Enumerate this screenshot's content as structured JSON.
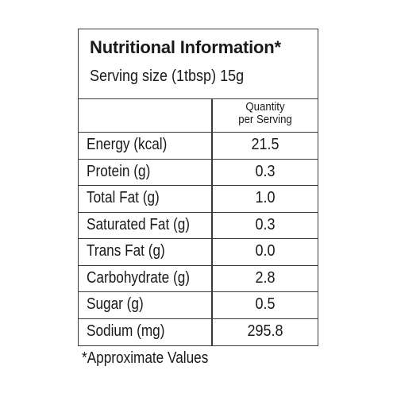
{
  "label": {
    "title": "Nutritional Information*",
    "serving_size": "Serving size (1tbsp) 15g",
    "column_header": "Quantity\nper Serving",
    "rows": [
      {
        "nutrient": "Energy (kcal)",
        "value": "21.5"
      },
      {
        "nutrient": "Protein (g)",
        "value": "0.3"
      },
      {
        "nutrient": "Total Fat (g)",
        "value": "1.0"
      },
      {
        "nutrient": "Saturated Fat (g)",
        "value": "0.3"
      },
      {
        "nutrient": "Trans Fat (g)",
        "value": "0.0"
      },
      {
        "nutrient": "Carbohydrate (g)",
        "value": "2.8"
      },
      {
        "nutrient": "Sugar (g)",
        "value": "0.5"
      },
      {
        "nutrient": "Sodium (mg)",
        "value": "295.8"
      }
    ],
    "footnote": "*Approximate Values"
  },
  "colors": {
    "text": "#1a1a1a",
    "border": "#3a3a3a",
    "background": "#ffffff"
  }
}
